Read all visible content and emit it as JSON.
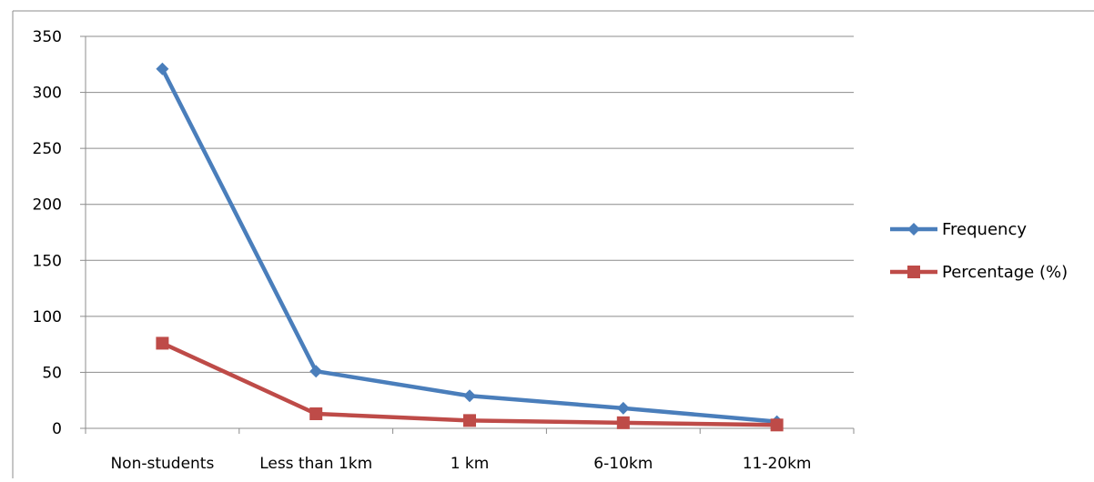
{
  "chart_data": {
    "type": "line",
    "categories": [
      "Non-students",
      "Less than 1km",
      "1 km",
      "6-10km",
      "11-20km"
    ],
    "series": [
      {
        "name": "Frequency",
        "values": [
          321,
          51,
          29,
          18,
          6
        ],
        "color": "#4A7EBB",
        "marker": "diamond"
      },
      {
        "name": "Percentage (%)",
        "values": [
          76,
          13,
          7,
          5,
          3
        ],
        "color": "#BE4B48",
        "marker": "square"
      }
    ],
    "ylim": [
      0,
      350
    ],
    "yticks": [
      0,
      50,
      100,
      150,
      200,
      250,
      300,
      350
    ],
    "grid": true,
    "legend": "right",
    "title": "",
    "xlabel": "",
    "ylabel": ""
  }
}
